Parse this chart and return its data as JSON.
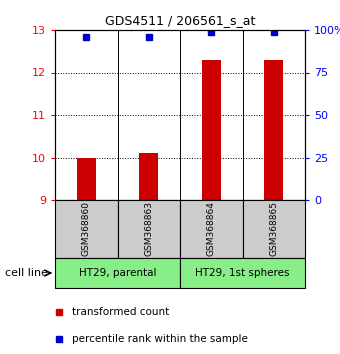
{
  "title": "GDS4511 / 206561_s_at",
  "samples": [
    "GSM368860",
    "GSM368863",
    "GSM368864",
    "GSM368865"
  ],
  "bar_values": [
    10.0,
    10.1,
    12.3,
    12.3
  ],
  "percentile_values": [
    96,
    96,
    99,
    99
  ],
  "ylim_left": [
    9,
    13
  ],
  "ylim_right": [
    0,
    100
  ],
  "yticks_left": [
    9,
    10,
    11,
    12,
    13
  ],
  "yticks_right": [
    0,
    25,
    50,
    75,
    100
  ],
  "bar_color": "#cc0000",
  "dot_color": "#0000cc",
  "groups": [
    {
      "label": "HT29, parental",
      "samples": [
        0,
        1
      ],
      "color": "#88ee88"
    },
    {
      "label": "HT29, 1st spheres",
      "samples": [
        2,
        3
      ],
      "color": "#88ee88"
    }
  ],
  "sample_box_color": "#cccccc",
  "legend_bar_label": "transformed count",
  "legend_dot_label": "percentile rank within the sample",
  "cell_line_label": "cell line",
  "grid_ticks": [
    10,
    11,
    12
  ],
  "bar_width": 0.3,
  "dot_markersize": 5
}
